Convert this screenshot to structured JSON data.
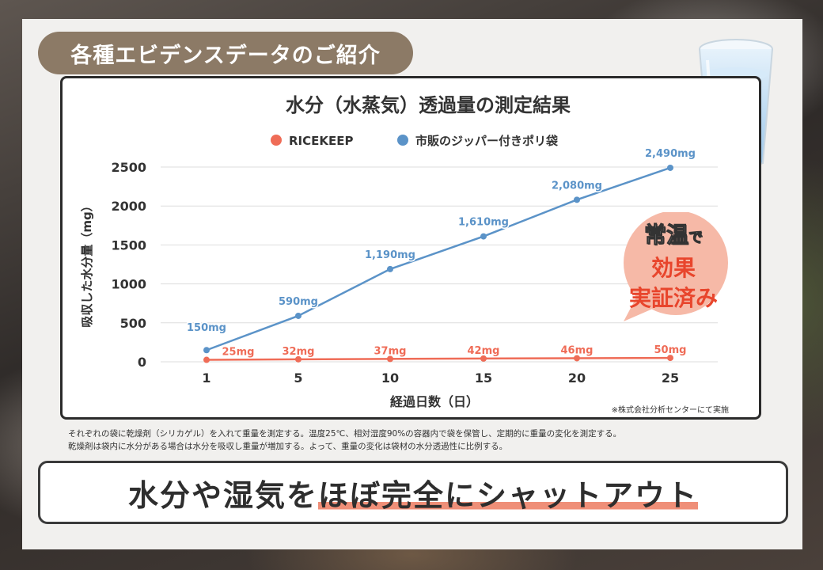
{
  "header_tag": "各種エビデンスデータのご紹介",
  "chart_data": {
    "type": "line",
    "title": "水分（水蒸気）透過量の測定結果",
    "x": [
      1,
      5,
      10,
      15,
      20,
      25
    ],
    "xticklabels": [
      "1",
      "5",
      "10",
      "15",
      "20",
      "25"
    ],
    "xlabel": "経過日数（日）",
    "ylabel": "吸収した水分量（mg）",
    "ylim": [
      0,
      2500
    ],
    "yticks": [
      0,
      500,
      1000,
      1500,
      2000,
      2500
    ],
    "grid": true,
    "legend_position": "top-center",
    "series": [
      {
        "name": "RICEKEEP",
        "color": "#ef6c57",
        "values": [
          25,
          32,
          37,
          42,
          46,
          50
        ],
        "labels": [
          "25mg",
          "32mg",
          "37mg",
          "42mg",
          "46mg",
          "50mg"
        ]
      },
      {
        "name": "市販のジッパー付きポリ袋",
        "color": "#5b93c8",
        "values": [
          150,
          590,
          1190,
          1610,
          2080,
          2490
        ],
        "labels": [
          "150mg",
          "590mg",
          "1,190mg",
          "1,610mg",
          "2,080mg",
          "2,490mg"
        ]
      }
    ],
    "source": "※株式会社分析センターにて実施"
  },
  "badge": {
    "line1_main": "常温",
    "line1_suffix": "で",
    "line2": "効果",
    "line3": "実証済み"
  },
  "notes": [
    "それぞれの袋に乾燥剤（シリカゲル）を入れて重量を測定する。温度25℃、相対湿度90%の容器内で袋を保管し、定期的に重量の変化を測定する。",
    "乾燥剤は袋内に水分がある場合は水分を吸収し重量が増加する。よって、重量の変化は袋材の水分透過性に比例する。"
  ],
  "bottom": {
    "text_before": "水分や湿気を",
    "text_highlight": "ほぼ完全にシャットアウト"
  },
  "colors": {
    "tag_bg": "#8c7a66",
    "badge_bg": "#f6b9a7",
    "highlight": "#ef8f78"
  }
}
